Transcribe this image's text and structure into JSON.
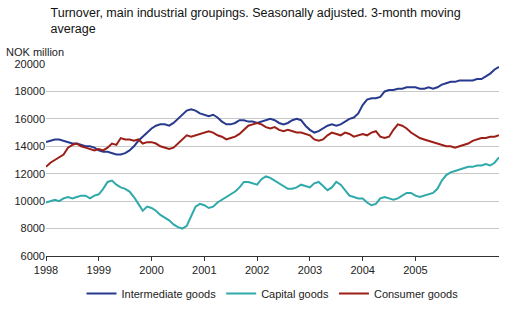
{
  "chart_data": {
    "type": "line",
    "title": "Turnover, main industrial groupings. Seasonally adjusted. 3-month moving average",
    "ylabel": "NOK million",
    "categories": [
      "1998",
      null,
      null,
      null,
      null,
      null,
      null,
      null,
      null,
      null,
      null,
      null,
      "1999",
      null,
      null,
      null,
      null,
      null,
      null,
      null,
      null,
      null,
      null,
      null,
      "2000",
      null,
      null,
      null,
      null,
      null,
      null,
      null,
      null,
      null,
      null,
      null,
      "2001",
      null,
      null,
      null,
      null,
      null,
      null,
      null,
      null,
      null,
      null,
      null,
      "2002",
      null,
      null,
      null,
      null,
      null,
      null,
      null,
      null,
      null,
      null,
      null,
      "2003",
      null,
      null,
      null,
      null,
      null,
      null,
      null,
      null,
      null,
      null,
      null,
      "2004",
      null,
      null,
      null,
      null,
      null,
      null,
      null,
      null,
      null,
      null,
      null,
      "2005",
      null,
      null,
      null,
      null,
      null,
      null,
      null,
      null,
      null,
      null,
      null,
      null,
      null,
      null,
      null,
      null,
      null,
      null,
      null
    ],
    "series": [
      {
        "name": "Intermediate goods",
        "color": "#283a8e",
        "values": [
          14300,
          14400,
          14500,
          14500,
          14400,
          14300,
          14200,
          14200,
          14100,
          14000,
          14000,
          13900,
          13700,
          13600,
          13600,
          13500,
          13400,
          13400,
          13500,
          13700,
          14000,
          14400,
          14700,
          15000,
          15300,
          15500,
          15600,
          15600,
          15500,
          15700,
          16000,
          16300,
          16600,
          16700,
          16600,
          16400,
          16300,
          16200,
          16300,
          16100,
          15800,
          15600,
          15600,
          15700,
          15900,
          15900,
          15800,
          15800,
          15700,
          15800,
          15900,
          16000,
          15900,
          15700,
          15600,
          15700,
          15900,
          16000,
          15900,
          15500,
          15200,
          15000,
          15100,
          15300,
          15500,
          15600,
          15500,
          15600,
          15800,
          16000,
          16100,
          16400,
          17000,
          17400,
          17500,
          17500,
          17600,
          18000,
          18100,
          18100,
          18200,
          18200,
          18300,
          18300,
          18300,
          18200,
          18200,
          18300,
          18200,
          18300,
          18500,
          18600,
          18700,
          18700,
          18800,
          18800,
          18800,
          18800,
          18900,
          18900,
          19100,
          19300,
          19600,
          19800
        ]
      },
      {
        "name": "Capital goods",
        "color": "#2fa9aa",
        "values": [
          9900,
          10000,
          10100,
          10000,
          10200,
          10300,
          10200,
          10300,
          10400,
          10400,
          10200,
          10400,
          10500,
          10900,
          11400,
          11500,
          11200,
          11000,
          10900,
          10700,
          10300,
          9800,
          9300,
          9600,
          9500,
          9300,
          9000,
          8800,
          8600,
          8300,
          8100,
          8000,
          8200,
          8900,
          9600,
          9800,
          9700,
          9500,
          9600,
          9900,
          10100,
          10300,
          10500,
          10700,
          11000,
          11400,
          11400,
          11300,
          11200,
          11600,
          11800,
          11700,
          11500,
          11300,
          11100,
          10900,
          10900,
          11000,
          11200,
          11100,
          11000,
          11300,
          11400,
          11100,
          10800,
          11000,
          11400,
          11200,
          10800,
          10400,
          10300,
          10200,
          10200,
          9900,
          9700,
          9800,
          10200,
          10300,
          10200,
          10100,
          10200,
          10400,
          10600,
          10600,
          10400,
          10300,
          10400,
          10500,
          10600,
          10900,
          11500,
          11900,
          12100,
          12200,
          12300,
          12400,
          12500,
          12500,
          12600,
          12600,
          12700,
          12600,
          12800,
          13200
        ]
      },
      {
        "name": "Consumer goods",
        "color": "#9c1f17",
        "values": [
          12500,
          12800,
          13000,
          13200,
          13400,
          13900,
          14100,
          14200,
          14000,
          13900,
          13800,
          13700,
          13800,
          13700,
          13900,
          14200,
          14100,
          14600,
          14500,
          14500,
          14400,
          14500,
          14200,
          14300,
          14300,
          14200,
          14000,
          13900,
          13800,
          13900,
          14200,
          14500,
          14800,
          14700,
          14800,
          14900,
          15000,
          15100,
          15000,
          14800,
          14700,
          14500,
          14600,
          14700,
          14900,
          15200,
          15500,
          15600,
          15700,
          15600,
          15400,
          15300,
          15400,
          15200,
          15100,
          15200,
          15100,
          15000,
          15000,
          14900,
          14800,
          14500,
          14400,
          14500,
          14800,
          15000,
          14900,
          14800,
          15000,
          14900,
          14700,
          14800,
          14900,
          14800,
          15000,
          15100,
          14700,
          14600,
          14700,
          15200,
          15600,
          15500,
          15300,
          15000,
          14800,
          14600,
          14500,
          14400,
          14300,
          14200,
          14100,
          14000,
          14000,
          13900,
          14000,
          14100,
          14200,
          14400,
          14500,
          14600,
          14600,
          14700,
          14700,
          14800
        ]
      }
    ],
    "ylim": [
      6000,
      20000
    ],
    "yticks": [
      6000,
      8000,
      10000,
      12000,
      14000,
      16000,
      18000,
      20000
    ],
    "grid": true,
    "legend": "bottom"
  }
}
